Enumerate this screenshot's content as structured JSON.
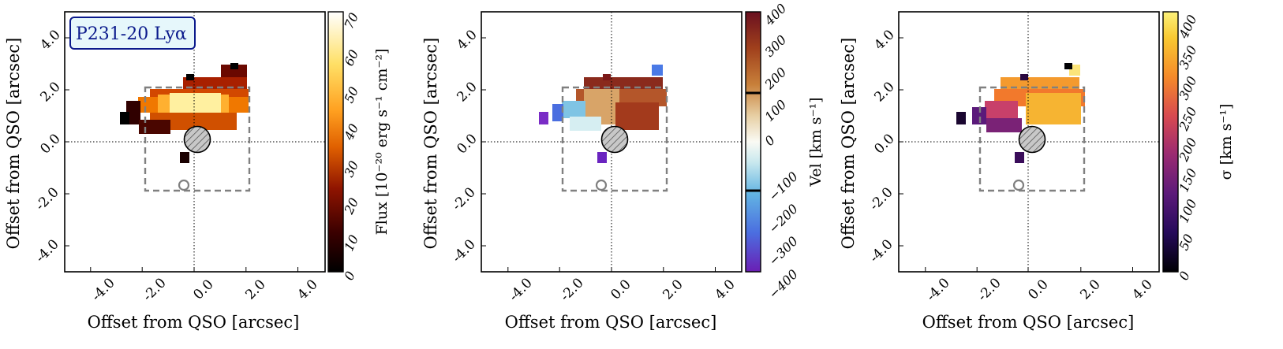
{
  "figure_title": "P231-20 Lyα",
  "colors": {
    "frame": "#000000",
    "dashed_box": "#808080",
    "title_box_fill": "#e6f7fb",
    "title_box_stroke": "#0b1a8c",
    "title_text": "#0b1a8c",
    "beam_fill": "#c8c8c8"
  },
  "chart_data": [
    {
      "type": "heatmap",
      "panel": "flux",
      "title": "P231-20 Lyα",
      "xlabel": "Offset from QSO [arcsec]",
      "ylabel": "Offset from QSO [arcsec]",
      "xlim": [
        -5,
        5
      ],
      "ylim": [
        -5,
        5
      ],
      "xticks": [
        -4,
        -2,
        0,
        2,
        4
      ],
      "xtick_labels": [
        "-4.0",
        "-2.0",
        "0.0",
        "2.0",
        "4.0"
      ],
      "yticks": [
        -4,
        -2,
        0,
        2,
        4
      ],
      "ytick_labels": [
        "-4.0",
        "-2.0",
        "0.0",
        "2.0",
        "4.0"
      ],
      "colorbar": {
        "label": "Flux [10⁻²⁰ erg s⁻¹ cm⁻²]",
        "min": 0,
        "max": 70,
        "ticks": [
          0,
          10,
          20,
          30,
          40,
          50,
          60,
          70
        ],
        "tick_labels": [
          "0",
          "10",
          "20",
          "30",
          "40",
          "50",
          "60",
          "70"
        ],
        "colormap": "afmhot"
      },
      "reference_box": {
        "x": [
          -1.8,
          2.1
        ],
        "y": [
          -1.85,
          2.1
        ]
      },
      "beam": {
        "x": 0.15,
        "y": 0.1,
        "diameter": 1.0
      },
      "contour": {
        "x": -0.4,
        "y": -1.65
      }
    },
    {
      "type": "heatmap",
      "panel": "velocity",
      "xlabel": "Offset from QSO [arcsec]",
      "ylabel": "Offset from QSO [arcsec]",
      "xlim": [
        -5,
        5
      ],
      "ylim": [
        -5,
        5
      ],
      "xticks": [
        -4,
        -2,
        0,
        2,
        4
      ],
      "xtick_labels": [
        "-4.0",
        "-2.0",
        "0.0",
        "2.0",
        "4.0"
      ],
      "yticks": [
        -4,
        -2,
        0,
        2,
        4
      ],
      "ytick_labels": [
        "-4.0",
        "-2.0",
        "0.0",
        "2.0",
        "4.0"
      ],
      "colorbar": {
        "label": "Vel [km s⁻¹]",
        "min": -400,
        "max": 400,
        "ticks": [
          -400,
          -300,
          -200,
          -100,
          0,
          100,
          200,
          300,
          400
        ],
        "tick_labels": [
          "−400",
          "−300",
          "−200",
          "−100",
          "0",
          "100",
          "200",
          "300",
          "400"
        ],
        "colormap": "diverging blue-white-brown",
        "marker_lines": [
          -150,
          150
        ]
      },
      "reference_box": {
        "x": [
          -1.8,
          2.1
        ],
        "y": [
          -1.85,
          2.1
        ]
      },
      "beam": {
        "x": 0.15,
        "y": 0.1,
        "diameter": 1.0
      },
      "contour": {
        "x": -0.4,
        "y": -1.65
      }
    },
    {
      "type": "heatmap",
      "panel": "dispersion",
      "xlabel": "Offset from QSO [arcsec]",
      "ylabel": "Offset from QSO [arcsec]",
      "xlim": [
        -5,
        5
      ],
      "ylim": [
        -5,
        5
      ],
      "xticks": [
        -4,
        -2,
        0,
        2,
        4
      ],
      "xtick_labels": [
        "-4.0",
        "-2.0",
        "0.0",
        "2.0",
        "4.0"
      ],
      "yticks": [
        -4,
        -2,
        0,
        2,
        4
      ],
      "ytick_labels": [
        "-4.0",
        "-2.0",
        "0.0",
        "2.0",
        "4.0"
      ],
      "colorbar": {
        "label": "σ [km s⁻¹]",
        "min": 0,
        "max": 420,
        "ticks": [
          0,
          50,
          100,
          150,
          200,
          250,
          300,
          350,
          400
        ],
        "tick_labels": [
          "0",
          "50",
          "100",
          "150",
          "200",
          "250",
          "300",
          "350",
          "400"
        ],
        "colormap": "inferno-like"
      },
      "reference_box": {
        "x": [
          -1.8,
          2.1
        ],
        "y": [
          -1.85,
          2.1
        ]
      },
      "beam": {
        "x": 0.15,
        "y": 0.1,
        "diameter": 1.0
      },
      "contour": {
        "x": -0.4,
        "y": -1.65
      }
    }
  ]
}
